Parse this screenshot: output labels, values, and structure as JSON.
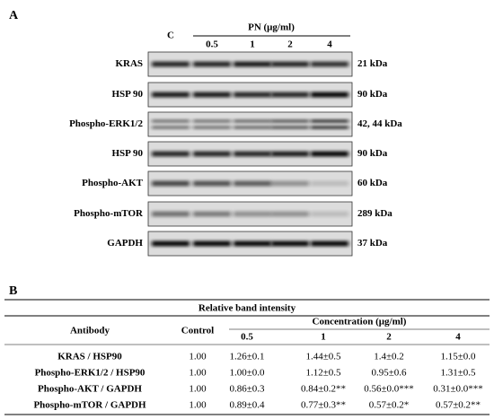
{
  "panel_a": {
    "label": "A",
    "control_label": "C",
    "treatment_label": "PN (μg/ml)",
    "concentrations": [
      "0.5",
      "1",
      "2",
      "4"
    ],
    "blots": [
      {
        "protein": "KRAS",
        "size": "21 kDa"
      },
      {
        "protein": "HSP 90",
        "size": "90 kDa"
      },
      {
        "protein": "Phospho-ERK1/2",
        "size": "42, 44 kDa"
      },
      {
        "protein": "HSP 90",
        "size": "90 kDa"
      },
      {
        "protein": "Phospho-AKT",
        "size": "60 kDa"
      },
      {
        "protein": "Phospho-mTOR",
        "size": "289 kDa"
      },
      {
        "protein": "GAPDH",
        "size": "37 kDa"
      }
    ]
  },
  "panel_b": {
    "label": "B",
    "title": "Relative band intensity",
    "header": {
      "antibody": "Antibody",
      "control": "Control",
      "concentration": "Concentration (μg/ml)",
      "concentrations": [
        "0.5",
        "1",
        "2",
        "4"
      ]
    },
    "rows": [
      [
        "KRAS / HSP90",
        "1.00",
        "1.26±0.1",
        "1.44±0.5",
        "1.4±0.2",
        "1.15±0.0"
      ],
      [
        "Phospho-ERK1/2 / HSP90",
        "1.00",
        "1.00±0.0",
        "1.12±0.5",
        "0.95±0.6",
        "1.31±0.5"
      ],
      [
        "Phospho-AKT / GAPDH",
        "1.00",
        "0.86±0.3",
        "0.84±0.2**",
        "0.56±0.0***",
        "0.31±0.0***"
      ],
      [
        "Phospho-mTOR / GAPDH",
        "1.00",
        "0.89±0.4",
        "0.77±0.3**",
        "0.57±0.2*",
        "0.57±0.2**"
      ]
    ]
  }
}
